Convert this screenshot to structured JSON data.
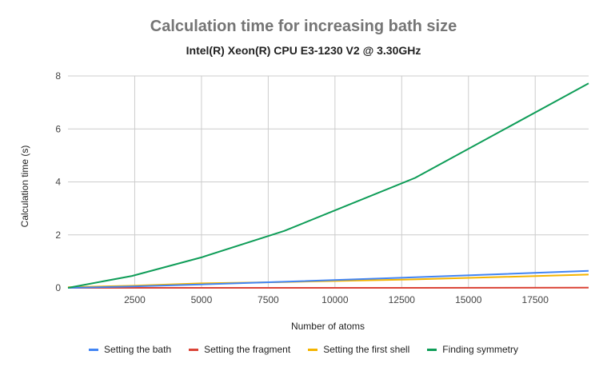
{
  "chart_data": {
    "type": "line",
    "title": "Calculation time for increasing bath size",
    "subtitle": "Intel(R) Xeon(R) CPU E3-1230 V2 @ 3.30GHz",
    "xlabel": "Number of atoms",
    "ylabel": "Calculation time (s)",
    "xlim": [
      0,
      19500
    ],
    "ylim": [
      0,
      8
    ],
    "xticks": [
      2500,
      5000,
      7500,
      10000,
      12500,
      15000,
      17500
    ],
    "xtick_labels": [
      "2500",
      "5000",
      "7500",
      "10000",
      "12500",
      "15000",
      "17500"
    ],
    "yticks": [
      0,
      2,
      4,
      6,
      8
    ],
    "ytick_labels": [
      "0",
      "2",
      "4",
      "6",
      "8"
    ],
    "grid": true,
    "legend_position": "bottom",
    "series": [
      {
        "name": "Setting the bath",
        "color": "#4285F4",
        "x": [
          0,
          2400,
          5000,
          8100,
          13000,
          19500
        ],
        "y": [
          0,
          0.05,
          0.13,
          0.23,
          0.4,
          0.64
        ]
      },
      {
        "name": "Setting the fragment",
        "color": "#DB4437",
        "x": [
          0,
          2400,
          5000,
          8100,
          13000,
          19500
        ],
        "y": [
          0,
          0,
          0,
          0,
          0,
          0.01
        ]
      },
      {
        "name": "Setting the first shell",
        "color": "#F4B400",
        "x": [
          0,
          2400,
          5000,
          8100,
          13000,
          19500
        ],
        "y": [
          0.02,
          0.08,
          0.17,
          0.22,
          0.32,
          0.5
        ]
      },
      {
        "name": "Finding symmetry",
        "color": "#0F9D58",
        "x": [
          0,
          2400,
          5000,
          8100,
          13000,
          19500
        ],
        "y": [
          0,
          0.45,
          1.15,
          2.15,
          4.15,
          7.72
        ]
      }
    ]
  }
}
